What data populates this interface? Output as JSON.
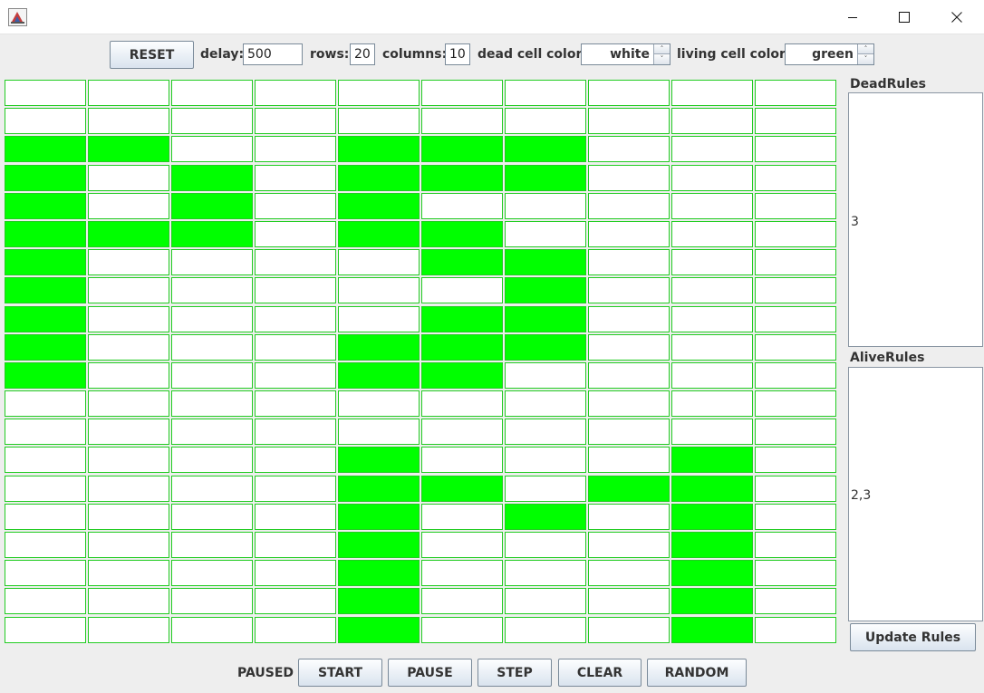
{
  "toolbar": {
    "reset": "RESET",
    "delay_label": "delay:",
    "delay_value": "500",
    "rows_label": "rows:",
    "rows_value": "20",
    "columns_label": "columns:",
    "columns_value": "10",
    "dead_color_label": "dead cell color:",
    "dead_color_value": "white",
    "living_color_label": "living cell color:",
    "living_color_value": "green"
  },
  "colors": {
    "alive": "#00ff00",
    "dead": "#ffffff",
    "cell_border": "#22cc22"
  },
  "grid": {
    "rows": [
      "0000000000",
      "0000000000",
      "1100111000",
      "1010111000",
      "1010100000",
      "1110110000",
      "1000011000",
      "1000001000",
      "1000011000",
      "1000111000",
      "1000110000",
      "0000000000",
      "0000000000",
      "0000100010",
      "0000110110",
      "0000101010",
      "0000100010",
      "0000100010",
      "0000100010",
      "0000100010"
    ]
  },
  "rules": {
    "dead_label": "DeadRules",
    "dead_value": "3",
    "alive_label": "AliveRules",
    "alive_value": "2,3",
    "update_button": "Update Rules"
  },
  "controls": {
    "status": "PAUSED",
    "start": "START",
    "pause": "PAUSE",
    "step": "STEP",
    "clear": "CLEAR",
    "random": "RANDOM"
  }
}
